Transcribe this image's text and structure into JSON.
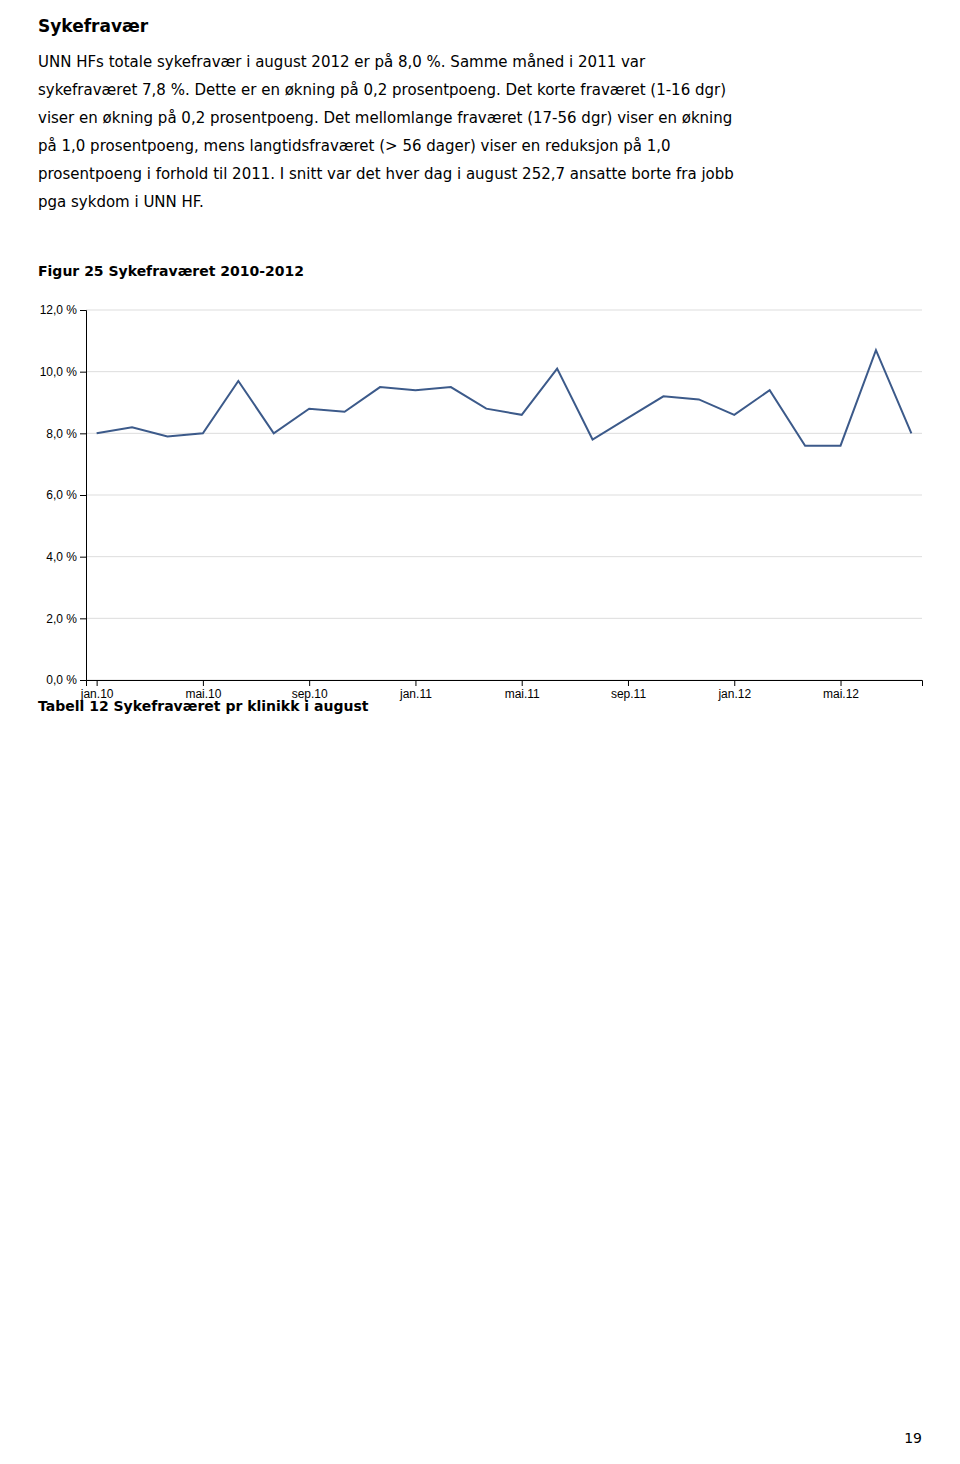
{
  "page": {
    "title": "Sykefravær",
    "paragraphs": [
      "UNN HFs totale sykefravær i august 2012 er på 8,0 %. Samme måned i 2011 var",
      "sykefraværet 7,8 %. Dette er en økning på 0,2 prosentpoeng. Det korte fraværet (1-16 dgr)",
      "viser en økning på 0,2 prosentpoeng. Det mellomlange fraværet (17-56 dgr) viser en økning",
      "på 1,0 prosentpoeng, mens langtidsfraværet (> 56 dager) viser en reduksjon på 1,0",
      "prosentpoeng i forhold til 2011. I snitt var det hver dag i august 252,7 ansatte borte fra jobb",
      "pga sykdom i UNN HF."
    ],
    "table_label": "Tabell 12 Sykefraværet pr klinikk i august",
    "page_number": "19"
  },
  "chart_data": {
    "type": "line",
    "title": "Figur 25 Sykefraværet 2010-2012",
    "categories": [
      "jan.10",
      null,
      null,
      "mai.10",
      null,
      null,
      "sep.10",
      null,
      null,
      "jan.11",
      null,
      null,
      "mai.11",
      null,
      null,
      "sep.11",
      null,
      null,
      "jan.12",
      null,
      null,
      "mai.12",
      null,
      null
    ],
    "values": [
      8.0,
      8.2,
      7.9,
      8.0,
      9.7,
      8.0,
      8.8,
      8.7,
      9.5,
      9.4,
      9.5,
      8.8,
      8.6,
      10.1,
      7.8,
      8.5,
      9.2,
      9.1,
      8.6,
      9.4,
      7.6,
      7.6,
      10.7,
      8.0
    ],
    "color": "#3C5A8A",
    "ylim": [
      0.0,
      12.0
    ],
    "yticks": [
      {
        "value": 0.0,
        "label": "0,0 %"
      },
      {
        "value": 2.0,
        "label": "2,0 %"
      },
      {
        "value": 4.0,
        "label": "4,0 %"
      },
      {
        "value": 6.0,
        "label": "6,0 %"
      },
      {
        "value": 8.0,
        "label": "8,0 %"
      },
      {
        "value": 10.0,
        "label": "10,0 %"
      },
      {
        "value": 12.0,
        "label": "12,0 %"
      }
    ],
    "grid": true
  }
}
